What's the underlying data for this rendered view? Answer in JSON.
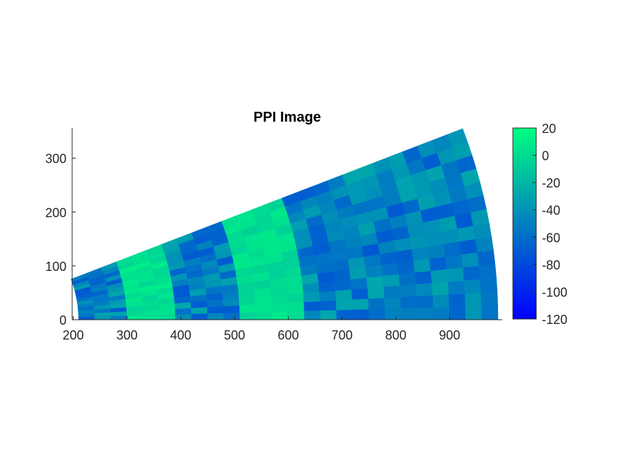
{
  "chart_data": {
    "type": "heatmap",
    "title": "PPI Image",
    "xlabel": "",
    "ylabel": "",
    "xlim": [
      198,
      998
    ],
    "ylim": [
      0,
      356
    ],
    "xticks": [
      200,
      300,
      400,
      500,
      600,
      700,
      800,
      900
    ],
    "yticks": [
      0,
      100,
      200,
      300
    ],
    "colorbar": {
      "clim": [
        -120,
        20
      ],
      "ticks": [
        20,
        0,
        -20,
        -40,
        -60,
        -80,
        -100,
        -120
      ],
      "colors": [
        "#0000ff",
        "#00ff80"
      ]
    },
    "sector": {
      "range_min": 210,
      "range_max": 990,
      "azimuth_min_deg": 0,
      "azimuth_max_deg": 21,
      "range_bins": 26,
      "azimuth_bins": 14,
      "background_level": -50,
      "high_return_bands": [
        {
          "range_from": 300,
          "range_to": 380,
          "level": 10
        },
        {
          "range_from": 520,
          "range_to": 620,
          "level": 8
        }
      ]
    }
  }
}
